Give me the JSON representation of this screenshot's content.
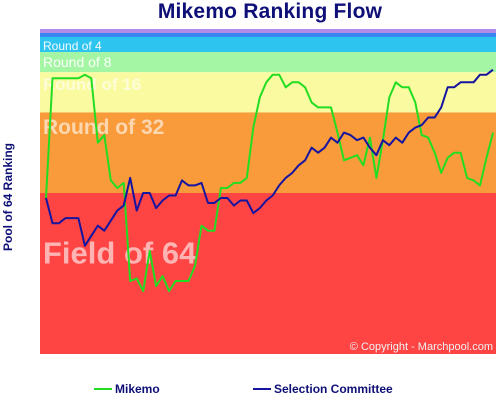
{
  "chart_data": {
    "type": "line",
    "title": "Mikemo Ranking Flow",
    "ylabel": "Pool of 64 Ranking",
    "ylim": [
      64,
      1
    ],
    "bands": [
      {
        "label": "Round of 4",
        "from": 1,
        "to": 4,
        "color": "#2ec4f0"
      },
      {
        "label": "Round of 8",
        "from": 4,
        "to": 8,
        "color": "#a4f5a4"
      },
      {
        "label": "Round of 16",
        "from": 8,
        "to": 16,
        "color": "#fafaa0"
      },
      {
        "label": "Round of 32",
        "from": 16,
        "to": 32,
        "color": "#f99b3b"
      },
      {
        "label": "Field of 64",
        "from": 32,
        "to": 64,
        "color": "#ff4444"
      }
    ],
    "top_strip_colors": [
      "#b28ae8",
      "#3a86f0"
    ],
    "copyright": "© Copyright - Marchpool.com",
    "series": [
      {
        "name": "Mikemo",
        "color": "#22dd22",
        "values": [
          33,
          9.2,
          9.2,
          9.2,
          9.2,
          9.2,
          8.5,
          9.2,
          22,
          20.5,
          29.5,
          31,
          30,
          49.5,
          49,
          51.5,
          43.5,
          50.5,
          48.5,
          51.5,
          49.5,
          49.5,
          49.5,
          46.5,
          38.5,
          39.5,
          39.5,
          31,
          31,
          30,
          30,
          29,
          19,
          13,
          10,
          8.5,
          8.5,
          11,
          10,
          10,
          11,
          14,
          15,
          15,
          15,
          20,
          25.5,
          25,
          24.5,
          26.5,
          21,
          29,
          21.5,
          13,
          10,
          11,
          11,
          14,
          20.5,
          21,
          24,
          28,
          25,
          24,
          24,
          29,
          29.5,
          30.5,
          25,
          20
        ]
      },
      {
        "name": "Selection Committee",
        "color": "#1515a0",
        "values": [
          33,
          38,
          38,
          37,
          37,
          37,
          42.5,
          40.5,
          38.5,
          39.5,
          37.5,
          35.5,
          34.5,
          29,
          35.5,
          32,
          32,
          35,
          33.5,
          32.5,
          32.5,
          29.5,
          30.5,
          30.5,
          30,
          34,
          34,
          33,
          33,
          34.5,
          33.5,
          33.5,
          36,
          35,
          33.5,
          32.5,
          30.5,
          29,
          28,
          26.5,
          25.5,
          23,
          24,
          23,
          21,
          22,
          20,
          20.5,
          21.5,
          21,
          23,
          24.5,
          21.5,
          22.5,
          21,
          22,
          20,
          19,
          18.5,
          17,
          17,
          15,
          11,
          11,
          10,
          10,
          10,
          8.5,
          8.5,
          7.5
        ]
      }
    ]
  },
  "watermark_color": "#ffffff"
}
